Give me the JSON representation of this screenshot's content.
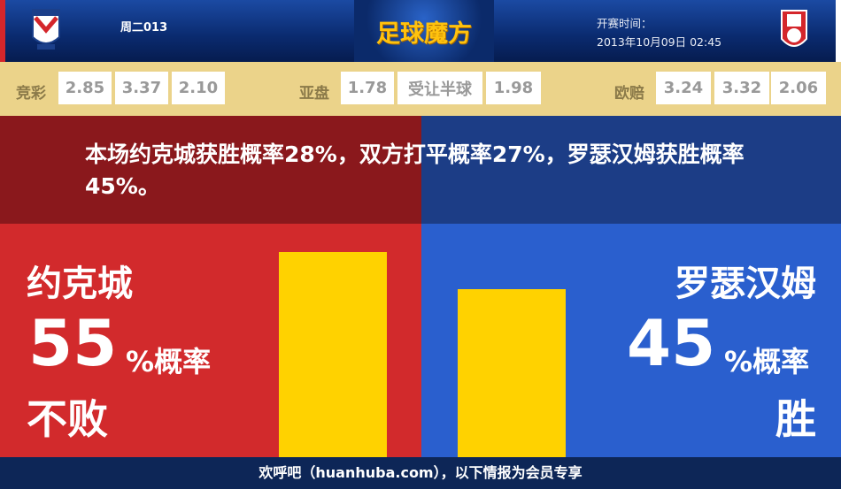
{
  "header": {
    "match_no": "周二013",
    "brand": "足球魔方",
    "kickoff_label": "开赛时间：",
    "kickoff_time": "2013年10月09日 02:45",
    "home_logo_text": "YORK CITY"
  },
  "odds": {
    "jingcai": {
      "label": "竞彩",
      "values": [
        "2.85",
        "3.37",
        "2.10"
      ]
    },
    "yapan": {
      "label": "亚盘",
      "values": [
        "1.78",
        "受让半球",
        "1.98"
      ]
    },
    "oupei": {
      "label": "欧赔",
      "values": [
        "3.24",
        "3.32",
        "2.06"
      ]
    }
  },
  "summary": "本场约克城获胜概率28%，双方打平概率27%，罗瑟汉姆获胜概率45%。",
  "home": {
    "name": "约克城",
    "percent": "55",
    "percent_value": 55,
    "unit": "%概率",
    "outcome": "不败"
  },
  "away": {
    "name": "罗瑟汉姆",
    "percent": "45",
    "percent_value": 45,
    "unit": "%概率",
    "outcome": "胜"
  },
  "colors": {
    "home": "#d22a2c",
    "away": "#2a5fce",
    "bar": "#ffd200"
  },
  "footer": "欢呼吧（huanhuba.com），以下情报为会员专享"
}
